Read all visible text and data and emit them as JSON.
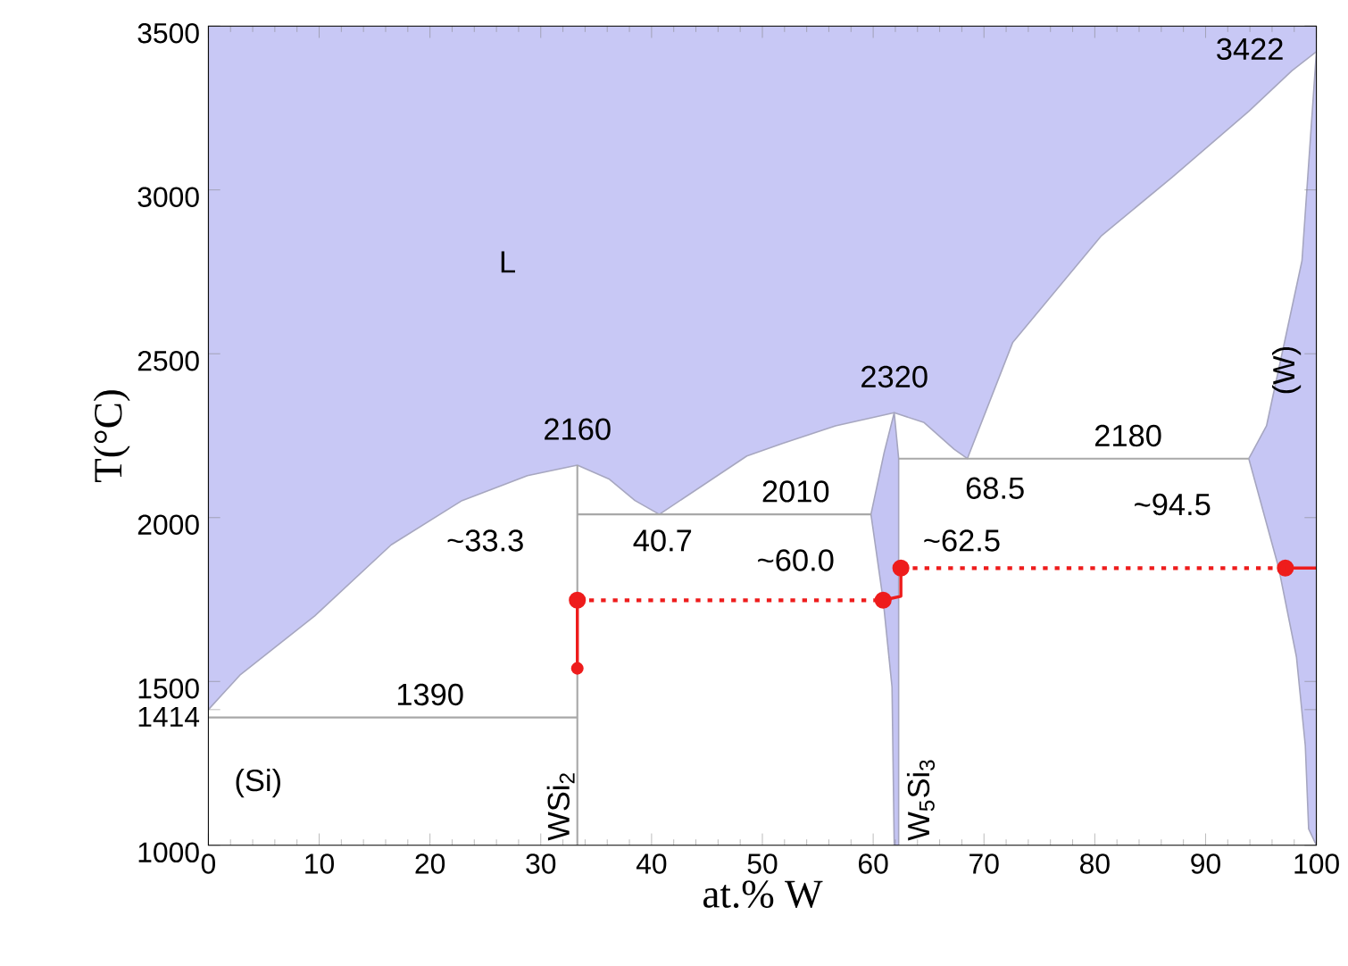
{
  "chart_data": {
    "type": "line",
    "xlabel": "at.% W",
    "ylabel": "T(°C)",
    "xlim": [
      0,
      100
    ],
    "ylim": [
      1000,
      3500
    ],
    "xticks": [
      0,
      10,
      20,
      30,
      40,
      50,
      60,
      70,
      80,
      90,
      100
    ],
    "yticks": [
      1000,
      1414,
      1500,
      2000,
      2500,
      3000,
      3500
    ],
    "grid": false,
    "series": [
      {
        "type": "area",
        "color": "#c8c8f5",
        "x": [
          0,
          2.9,
          9.6,
          16.5,
          22.9,
          28.8,
          33.3,
          36.2,
          38.5,
          40.7,
          48.6,
          51.8,
          56.6,
          61.9,
          64.6,
          67.3,
          68.5,
          72.6,
          80.6,
          87.0,
          93.9,
          97.8,
          100,
          100,
          0
        ],
        "values": [
          1414,
          1521,
          1700,
          1917,
          2052,
          2128,
          2160,
          2117,
          2052,
          2010,
          2188,
          2226,
          2280,
          2320,
          2290,
          2209,
          2180,
          2535,
          2860,
          3039,
          3240,
          3364,
          3422,
          3500,
          3500
        ]
      },
      {
        "type": "area",
        "color": "#c4c4f3",
        "x": [
          61.9,
          62.3,
          62.3,
          61.9,
          61.7,
          60.9,
          59.8,
          61.0
        ],
        "values": [
          2320,
          2180,
          1000,
          1000,
          1483,
          1748,
          2010,
          2200
        ]
      },
      {
        "type": "area",
        "color": "#c6c6f4",
        "x": [
          100,
          98.7,
          95.5,
          93.9,
          96.6,
          98.2,
          99.0,
          99.3,
          100
        ],
        "values": [
          3422,
          2784,
          2280,
          2180,
          1846,
          1575,
          1304,
          1050,
          1000
        ]
      },
      {
        "color": "#a8a8a8",
        "line_style": "solid",
        "marker": "none",
        "x": [
          33.3,
          33.3
        ],
        "values": [
          1000,
          2160
        ]
      },
      {
        "color": "#a8a8a8",
        "line_style": "solid",
        "marker": "none",
        "x": [
          0,
          33.3
        ],
        "values": [
          1390,
          1390
        ]
      },
      {
        "color": "#a8a8a8",
        "line_style": "solid",
        "marker": "none",
        "x": [
          33.3,
          59.8
        ],
        "values": [
          2010,
          2010
        ]
      },
      {
        "color": "#a8a8a8",
        "line_style": "solid",
        "marker": "none",
        "x": [
          62.3,
          93.9
        ],
        "values": [
          2180,
          2180
        ]
      },
      {
        "color": "#ee1c1c",
        "line_style": "dotted",
        "marker": "circle",
        "x": [
          33.3,
          60.9
        ],
        "values": [
          1748,
          1748
        ]
      },
      {
        "color": "#ee1c1c",
        "line_style": "solid",
        "marker": "circle",
        "x": [
          33.3,
          33.3
        ],
        "values": [
          1748,
          1540
        ]
      },
      {
        "color": "#ee1c1c",
        "line_style": "dotted",
        "marker": "circle",
        "x": [
          62.5,
          97.2
        ],
        "values": [
          1846,
          1846
        ]
      },
      {
        "color": "#ee1c1c",
        "line_style": "solid",
        "marker": "none",
        "x": [
          97.2,
          100
        ],
        "values": [
          1846,
          1846
        ]
      },
      {
        "color": "#ee1c1c",
        "line_style": "solid",
        "marker": "none",
        "x": [
          62.5,
          62.5,
          60.9
        ],
        "values": [
          1846,
          1760,
          1748
        ]
      }
    ],
    "annotations": [
      "L",
      "3422",
      "2160",
      "2320",
      "2010",
      "2180",
      "40.7",
      "68.5",
      "~33.3",
      "~60.0",
      "~62.5",
      "~94.5",
      "1390",
      "(Si)",
      "(W)",
      "WSi$_{2}$",
      "W$_{5}$Si$_{3}$"
    ]
  }
}
